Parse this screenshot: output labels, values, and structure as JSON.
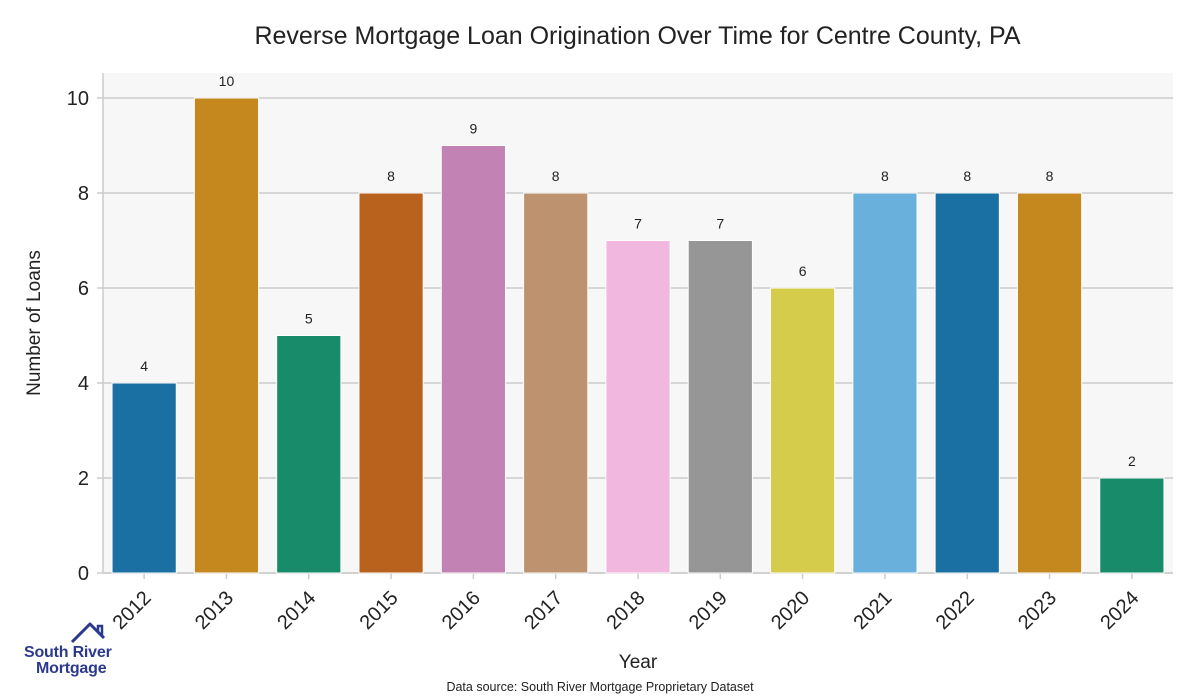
{
  "chart_data": {
    "type": "bar",
    "title": "Reverse Mortgage Loan Origination Over Time for Centre County, PA",
    "xlabel": "Year",
    "ylabel": "Number of Loans",
    "categories": [
      "2012",
      "2013",
      "2014",
      "2015",
      "2016",
      "2017",
      "2018",
      "2019",
      "2020",
      "2021",
      "2022",
      "2023",
      "2024"
    ],
    "values": [
      4,
      10,
      5,
      8,
      9,
      8,
      7,
      7,
      6,
      8,
      8,
      8,
      2
    ],
    "colors": [
      "#1a6fa3",
      "#c4881e",
      "#178b6a",
      "#b9621e",
      "#c282b4",
      "#bd926e",
      "#f1b7df",
      "#969696",
      "#d6cc4b",
      "#69b1dc",
      "#1a6fa3",
      "#c4881e",
      "#178b6a"
    ],
    "ylim": [
      0,
      10.5
    ],
    "yticks": [
      0,
      2,
      4,
      6,
      8,
      10
    ],
    "grid": true,
    "data_labels": true,
    "xtick_rotation": 45
  },
  "footer": {
    "source": "Data source: South River Mortgage Proprietary Dataset"
  },
  "logo": {
    "line1": "South River",
    "line2": "Mortgage"
  }
}
